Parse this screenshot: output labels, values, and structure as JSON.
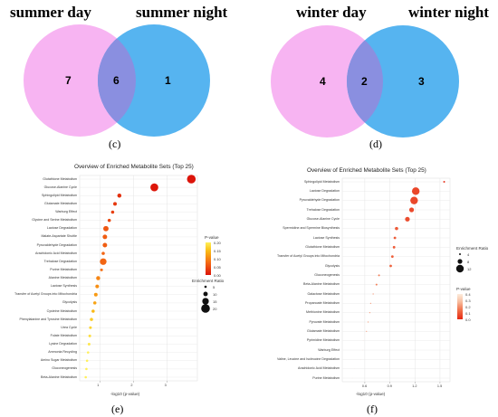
{
  "colors": {
    "venn_left": "#f7b4f2",
    "venn_right": "#56b4f0",
    "venn_overlap": "#8a8fe0"
  },
  "venn": [
    {
      "label_left": "summer day",
      "label_right": "summer night",
      "only_left": "7",
      "both": "6",
      "only_right": "1",
      "panel_label": "(c)"
    },
    {
      "label_left": "winter day",
      "label_right": "winter night",
      "only_left": "4",
      "both": "2",
      "only_right": "3",
      "panel_label": "(d)"
    }
  ],
  "chart_data": [
    {
      "type": "scatter",
      "panel_label": "(e)",
      "title": "Overview of Enriched Metabolite Sets (Top 25)",
      "xlabel": "-log10 (p-value)",
      "x_ticks": [
        1,
        2,
        3
      ],
      "xlim": [
        0.4,
        3.9
      ],
      "color_legend_title": "P-value",
      "color_ticks": [
        "0.20",
        "0.15",
        "0.10",
        "0.05",
        "0.00"
      ],
      "color_range": [
        0,
        0.22
      ],
      "size_legend_title": "Enrichment Ratio",
      "size_ticks": [
        5,
        10,
        15,
        20
      ],
      "categories": [
        "Glutathione Metabolism",
        "Glucose-Alanine Cycle",
        "Sphingolipid Metabolism",
        "Glutamate Metabolism",
        "Warburg Effect",
        "Glycine and Serine Metabolism",
        "Lactose Degradation",
        "Malate-Aspartate Shuttle",
        "Pyruvaldehyde Degradation",
        "Arachidonic Acid Metabolism",
        "Trehalose Degradation",
        "Purine Metabolism",
        "Alanine Metabolism",
        "Lactose Synthesis",
        "Transfer of Acetyl Groups into Mitochondria",
        "Glycolysis",
        "Cysteine Metabolism",
        "Phenylalanine and Tyrosine Metabolism",
        "Urea Cycle",
        "Folate Metabolism",
        "Lysine Degradation",
        "Ammonia Recycling",
        "Amino Sugar Metabolism",
        "Gluconeogenesis",
        "Beta-Alanine Metabolism"
      ],
      "x": [
        3.72,
        2.62,
        1.58,
        1.45,
        1.38,
        1.28,
        1.18,
        1.15,
        1.15,
        1.1,
        1.1,
        1.05,
        0.95,
        0.92,
        0.88,
        0.85,
        0.8,
        0.75,
        0.72,
        0.7,
        0.68,
        0.65,
        0.62,
        0.6,
        0.58
      ],
      "p_value": [
        0.0002,
        0.0024,
        0.026,
        0.035,
        0.042,
        0.052,
        0.066,
        0.071,
        0.071,
        0.079,
        0.079,
        0.089,
        0.11,
        0.12,
        0.13,
        0.14,
        0.16,
        0.18,
        0.19,
        0.2,
        0.21,
        0.22,
        0.22,
        0.22,
        0.22
      ],
      "enrichment_ratio": [
        20,
        18,
        9,
        8,
        7,
        7,
        12,
        10,
        10,
        7,
        15,
        6,
        9,
        8,
        8,
        7,
        7,
        7,
        6,
        6,
        6,
        5,
        5,
        5,
        5
      ]
    },
    {
      "type": "scatter",
      "panel_label": "(f)",
      "title": "Overview of Enriched Metabolite Sets (Top 25)",
      "xlabel": "-log10 (p-value)",
      "x_ticks": [
        0.6,
        0.9,
        1.2,
        1.5
      ],
      "xlim": [
        0.33,
        1.62
      ],
      "color_legend_title": "P-value",
      "color_ticks": [
        "0.4",
        "0.3",
        "0.2",
        "0.1",
        "0.0"
      ],
      "color_range": [
        0,
        0.42
      ],
      "size_legend_title": "Enrichment Ratio",
      "size_ticks": [
        4,
        8,
        12
      ],
      "categories": [
        "Sphingolipid Metabolism",
        "Lactose Degradation",
        "Pyruvaldehyde Degradation",
        "Trehalose Degradation",
        "Glucose-Alanine Cycle",
        "Spermidine and Spermine Biosynthesis",
        "Lactose Synthesis",
        "Glutathione Metabolism",
        "Transfer of Acetyl Groups into Mitochondria",
        "Glycolysis",
        "Gluconeogenesis",
        "Beta-Alanine Metabolism",
        "Galactose Metabolism",
        "Propanoate Metabolism",
        "Methionine Metabolism",
        "Pyruvate Metabolism",
        "Glutamate Metabolism",
        "Pyrimidine Metabolism",
        "Warburg Effect",
        "Valine, Leucine and Isoleucine Degradation",
        "Arachidonic Acid Metabolism",
        "Purine Metabolism"
      ],
      "x": [
        1.55,
        1.21,
        1.19,
        1.16,
        1.11,
        0.98,
        0.96,
        0.95,
        0.93,
        0.91,
        0.77,
        0.74,
        0.7,
        0.67,
        0.66,
        0.64,
        0.62,
        0.58,
        0.57,
        0.55,
        0.48,
        0.45
      ],
      "p_value": [
        0.028,
        0.062,
        0.065,
        0.069,
        0.078,
        0.105,
        0.11,
        0.112,
        0.117,
        0.123,
        0.17,
        0.182,
        0.2,
        0.214,
        0.219,
        0.229,
        0.24,
        0.263,
        0.269,
        0.282,
        0.331,
        0.355
      ],
      "enrichment_ratio": [
        4,
        12,
        12,
        8,
        8,
        6,
        5,
        5,
        5,
        5,
        4,
        4,
        3,
        3,
        3,
        3,
        3,
        2,
        2,
        2,
        2,
        2
      ]
    }
  ]
}
